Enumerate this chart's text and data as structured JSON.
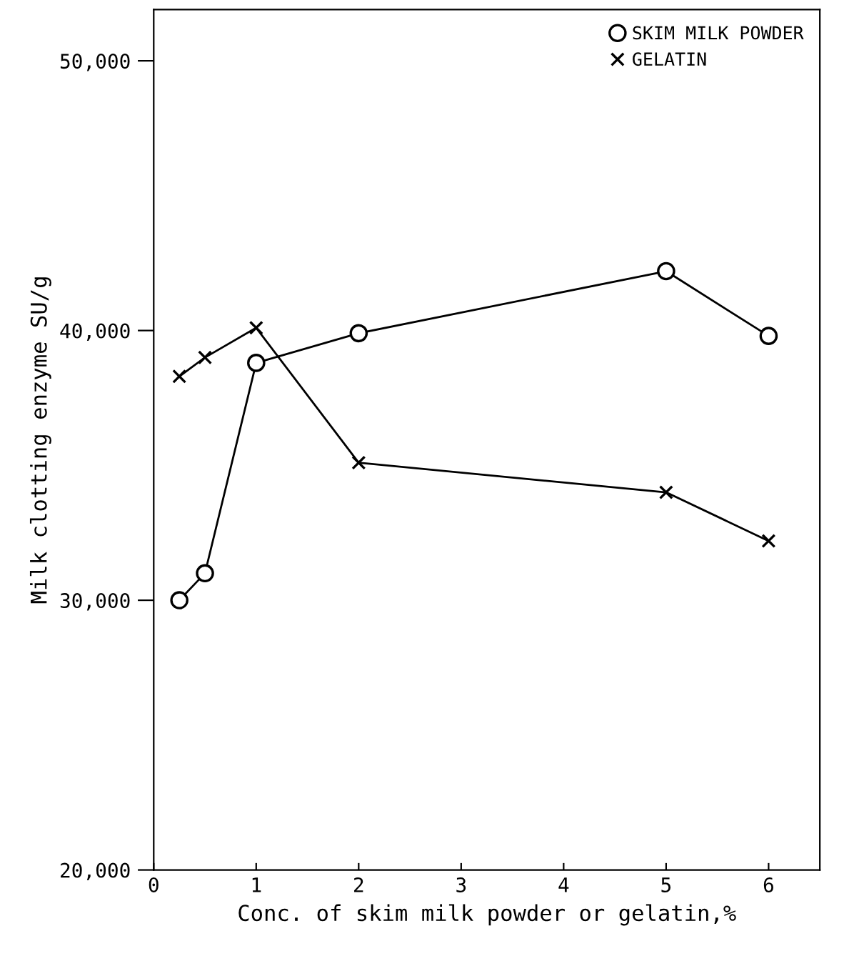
{
  "chart_data": {
    "type": "line",
    "xlabel": "Conc. of skim milk powder or gelatin,%",
    "ylabel": "Milk clotting enzyme SU/g",
    "xlim": [
      0,
      6.5
    ],
    "xticks": [
      0,
      1,
      2,
      3,
      4,
      5,
      6
    ],
    "ylim": [
      20000,
      51900
    ],
    "yticks": [
      {
        "value": 20000,
        "label": "20,000"
      },
      {
        "value": 30000,
        "label": "30,000"
      },
      {
        "value": 40000,
        "label": "40,000"
      },
      {
        "value": 50000,
        "label": "50,000"
      }
    ],
    "grid": false,
    "legend": "top right",
    "line_style": "solid",
    "series": [
      {
        "name": "SKIM MILK POWDER",
        "color": "#000000",
        "marker": "circle",
        "x": [
          0.25,
          0.5,
          1,
          2,
          5,
          6
        ],
        "values": [
          30000,
          31000,
          38800,
          39900,
          42200,
          39800
        ]
      },
      {
        "name": "GELATIN",
        "color": "#000000",
        "marker": "cross",
        "x": [
          0.25,
          0.5,
          1,
          2,
          5,
          6
        ],
        "values": [
          38300,
          39000,
          40100,
          35100,
          34000,
          32200
        ]
      }
    ]
  }
}
